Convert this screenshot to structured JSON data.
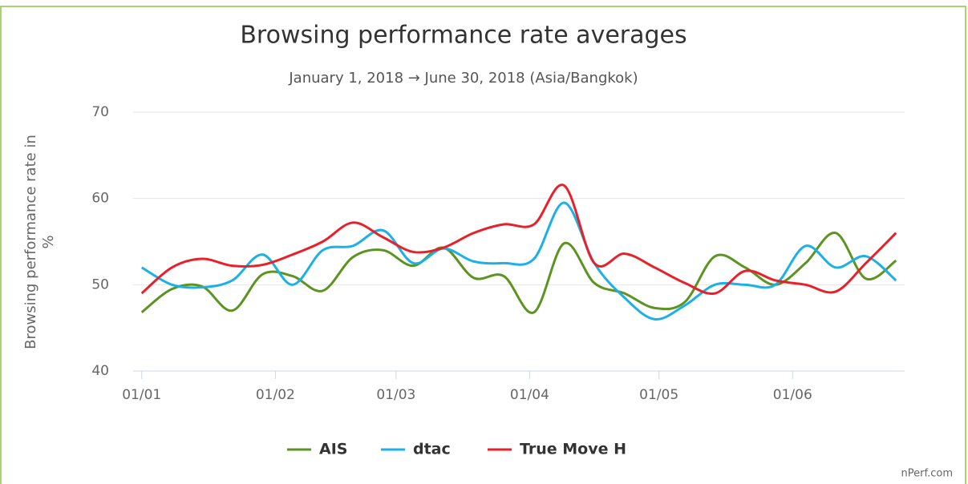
{
  "chart_data": {
    "type": "line",
    "title": "Browsing performance rate averages",
    "subtitle": "January 1, 2018 → June 30, 2018 (Asia/Bangkok)",
    "y_label": "Browsing performance rate in %",
    "credit": "nPerf.com",
    "x": [
      0,
      7,
      14,
      21,
      28,
      35,
      42,
      49,
      56,
      63,
      70,
      77,
      84,
      91,
      98,
      105,
      112,
      119,
      126,
      133,
      140,
      147,
      154,
      161,
      168,
      175
    ],
    "xlim": [
      -2,
      177
    ],
    "xticks": [
      {
        "value": 0,
        "label": "01/01"
      },
      {
        "value": 31,
        "label": "01/02"
      },
      {
        "value": 59,
        "label": "01/03"
      },
      {
        "value": 90,
        "label": "01/04"
      },
      {
        "value": 120,
        "label": "01/05"
      },
      {
        "value": 151,
        "label": "01/06"
      }
    ],
    "ylim": [
      40,
      70
    ],
    "yticks": [
      40,
      50,
      60,
      70
    ],
    "grid": true,
    "legend": "bottom",
    "series": [
      {
        "name": "AIS",
        "color": "#5b9420",
        "values": [
          46.8,
          49.5,
          49.8,
          47,
          51.2,
          51,
          49.3,
          53.2,
          54,
          52.2,
          54.3,
          50.8,
          51,
          46.8,
          54.8,
          50.2,
          49,
          47.3,
          48,
          53.3,
          52,
          50,
          52.5,
          56,
          50.7,
          52.8
        ]
      },
      {
        "name": "dtac",
        "color": "#1cb0e8",
        "values": [
          52,
          50,
          49.7,
          50.5,
          53.5,
          50,
          54,
          54.5,
          56.3,
          52.5,
          54.2,
          52.7,
          52.5,
          53,
          59.5,
          52.5,
          48.5,
          46,
          47.6,
          50,
          50,
          50,
          54.5,
          52,
          53.3,
          50.5
        ]
      },
      {
        "name": "True Move H",
        "color": "#e8202a",
        "values": [
          49,
          52,
          53,
          52.2,
          52.3,
          53.5,
          55,
          57.2,
          55.5,
          53.8,
          54.3,
          56,
          57,
          57,
          61.5,
          52.5,
          53.6,
          52,
          50.2,
          49,
          51.6,
          50.5,
          50,
          49.2,
          52.5,
          56
        ]
      }
    ]
  }
}
